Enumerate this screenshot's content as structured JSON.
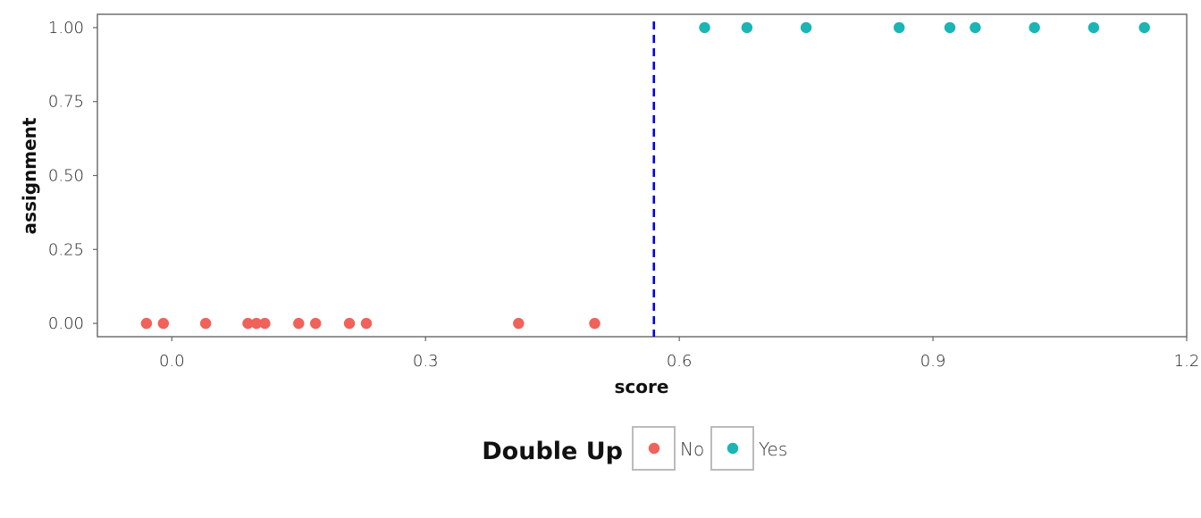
{
  "chart_data": {
    "type": "scatter",
    "title": "",
    "xlabel": "score",
    "ylabel": "assignment",
    "xlim": [
      -0.088,
      1.2
    ],
    "ylim": [
      -0.045,
      1.045
    ],
    "x_ticks": [
      0.0,
      0.3,
      0.6,
      0.9,
      1.2
    ],
    "x_tick_labels": [
      "0.0",
      "0.3",
      "0.6",
      "0.9",
      "1.2"
    ],
    "y_ticks": [
      0.0,
      0.25,
      0.5,
      0.75,
      1.0
    ],
    "y_tick_labels": [
      "0.00",
      "0.25",
      "0.50",
      "0.75",
      "1.00"
    ],
    "grid": false,
    "legend_position": "bottom",
    "cutoff_line": {
      "x": 0.57,
      "style": "dashed",
      "color": "#0000ee"
    },
    "legend": {
      "title": "Double Up",
      "entries": [
        {
          "label": "No",
          "color": "#f0625a"
        },
        {
          "label": "Yes",
          "color": "#1ab5b5"
        }
      ]
    },
    "series": [
      {
        "name": "No",
        "color": "#f0625a",
        "x": [
          -0.03,
          -0.01,
          0.04,
          0.09,
          0.1,
          0.11,
          0.15,
          0.17,
          0.21,
          0.23,
          0.41,
          0.5
        ],
        "y": [
          0,
          0,
          0,
          0,
          0,
          0,
          0,
          0,
          0,
          0,
          0,
          0
        ]
      },
      {
        "name": "Yes",
        "color": "#1ab5b5",
        "x": [
          0.63,
          0.68,
          0.75,
          0.86,
          0.92,
          0.95,
          1.02,
          1.09,
          1.15
        ],
        "y": [
          1,
          1,
          1,
          1,
          1,
          1,
          1,
          1,
          1
        ]
      }
    ]
  }
}
